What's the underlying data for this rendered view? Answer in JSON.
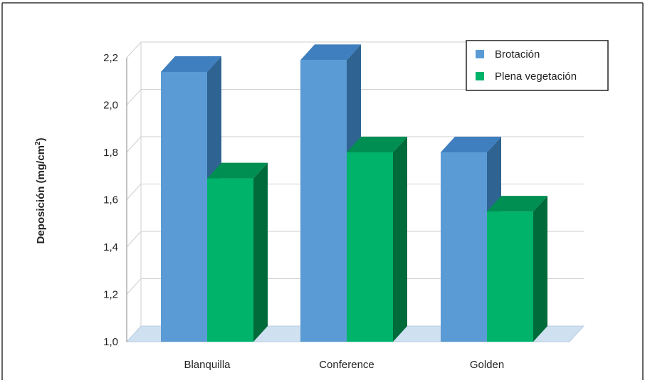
{
  "chart_data": {
    "type": "bar",
    "style": "3d-clustered-column",
    "categories": [
      "Blanquilla",
      "Conference",
      "Golden"
    ],
    "series": [
      {
        "name": "Brotación",
        "values": [
          2.14,
          2.19,
          1.8
        ],
        "color": "#5b9bd5",
        "side_color": "#2e6392",
        "top_color": "#3f7fbf"
      },
      {
        "name": "Plena vegetación",
        "values": [
          1.69,
          1.8,
          1.55
        ],
        "color": "#00b36b",
        "side_color": "#006b3a",
        "top_color": "#008f52"
      }
    ],
    "ylabel": "Deposición (mg/cm²)",
    "ylabel_main": "Deposición (mg/cm",
    "ylabel_sup": "2",
    "ylabel_end": ")",
    "ylim": [
      1.0,
      2.2
    ],
    "yticks": [
      "1,0",
      "1,2",
      "1,4",
      "1,6",
      "1,8",
      "2,0",
      "2,2"
    ],
    "grid": true,
    "legend_position": "top-right",
    "floor_color": "#cfe0f0"
  }
}
